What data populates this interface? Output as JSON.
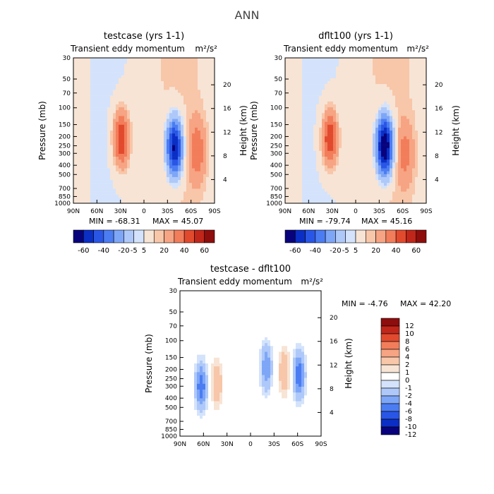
{
  "figure": {
    "title": "ANN"
  },
  "chart_data": [
    {
      "type": "heatmap",
      "title": "testcase (yrs 1-1)",
      "subtitle_left": "Transient eddy momentum",
      "subtitle_right": "m²/s²",
      "ylabel": "Pressure (mb)",
      "ylabel_right": "Height (km)",
      "x_ticks": [
        "90N",
        "60N",
        "30N",
        "0",
        "30S",
        "60S",
        "90S"
      ],
      "y_ticks": [
        "30",
        "50",
        "70",
        "100",
        "150",
        "200",
        "250",
        "300",
        "400",
        "500",
        "700",
        "850",
        "1000"
      ],
      "y_ticks_right": [
        "20",
        "16",
        "12",
        "8",
        "4"
      ],
      "min_text": "MIN = -68.31",
      "max_text": "MAX = 45.07",
      "features": [
        {
          "lat": 29,
          "p": 210,
          "value": 45,
          "sign": "pos"
        },
        {
          "lat": -39,
          "p": 260,
          "value": -68,
          "sign": "neg"
        },
        {
          "lat": -68,
          "p": 280,
          "value": 25,
          "sign": "pos"
        }
      ]
    },
    {
      "type": "heatmap",
      "title": "dflt100 (yrs 1-1)",
      "subtitle_left": "Transient eddy momentum",
      "subtitle_right": "m²/s²",
      "ylabel": "Pressure (mb)",
      "ylabel_right": "Height (km)",
      "x_ticks": [
        "90N",
        "60N",
        "30N",
        "0",
        "30S",
        "60S",
        "90S"
      ],
      "y_ticks": [
        "30",
        "50",
        "70",
        "100",
        "150",
        "200",
        "250",
        "300",
        "400",
        "500",
        "700",
        "850",
        "1000"
      ],
      "y_ticks_right": [
        "20",
        "16",
        "12",
        "8",
        "4"
      ],
      "min_text": "MIN = -79.74",
      "max_text": "MAX = 45.16",
      "features": [
        {
          "lat": 33,
          "p": 210,
          "value": 45,
          "sign": "pos"
        },
        {
          "lat": -37,
          "p": 250,
          "value": -80,
          "sign": "neg"
        },
        {
          "lat": -63,
          "p": 300,
          "value": 20,
          "sign": "pos"
        }
      ]
    },
    {
      "type": "heatmap",
      "title": "testcase - dflt100",
      "subtitle_left": "Transient eddy momentum",
      "subtitle_right": "m²/s²",
      "ylabel": "Pressure (mb)",
      "ylabel_right": "Height (km)",
      "x_ticks": [
        "90N",
        "60N",
        "30N",
        "0",
        "30S",
        "60S",
        "90S"
      ],
      "y_ticks": [
        "30",
        "50",
        "70",
        "100",
        "150",
        "200",
        "250",
        "300",
        "400",
        "500",
        "700",
        "850",
        "1000"
      ],
      "y_ticks_right": [
        "20",
        "16",
        "12",
        "8",
        "4"
      ],
      "min_text": "MIN = -4.76",
      "max_text": "MAX = 42.20",
      "features": [
        {
          "lat": 63,
          "p": 300,
          "value": 8,
          "sign": "pos"
        },
        {
          "lat": 43,
          "p": 280,
          "value": -4,
          "sign": "neg"
        },
        {
          "lat": -20,
          "p": 190,
          "value": 6,
          "sign": "pos"
        },
        {
          "lat": -43,
          "p": 210,
          "value": -4,
          "sign": "neg"
        },
        {
          "lat": -62,
          "p": 230,
          "value": 8,
          "sign": "pos"
        }
      ]
    }
  ],
  "colorbar_shared": {
    "labels": [
      "-60",
      "-40",
      "-20",
      "-5",
      "5",
      "20",
      "40",
      "60"
    ],
    "colors": [
      "#08037c",
      "#0b2ec4",
      "#2a56e6",
      "#4b7cf2",
      "#7ea6f7",
      "#aec8f9",
      "#d4e3fb",
      "#f7e4d5",
      "#f8c6a9",
      "#f6a483",
      "#f27d5b",
      "#e24a2e",
      "#c0261a",
      "#8e0d0d"
    ]
  },
  "colorbar_diff": {
    "labels": [
      "12",
      "10",
      "8",
      "6",
      "4",
      "2",
      "1",
      "0",
      "-1",
      "-2",
      "-4",
      "-6",
      "-8",
      "-10",
      "-12"
    ],
    "colors": [
      "#8e0d0d",
      "#c0261a",
      "#e24a2e",
      "#f27d5b",
      "#f6a483",
      "#f8c6a9",
      "#f7e4d5",
      "#ffffff",
      "#d4e3fb",
      "#aec8f9",
      "#7ea6f7",
      "#4b7cf2",
      "#2a56e6",
      "#0b2ec4",
      "#08037c"
    ]
  }
}
